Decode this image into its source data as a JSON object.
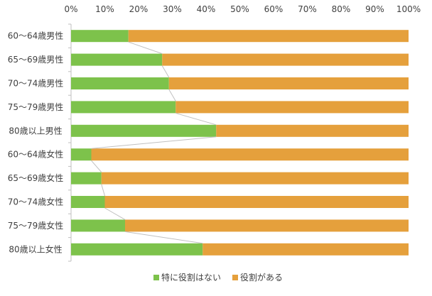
{
  "chart_data": {
    "type": "bar",
    "orientation": "horizontal",
    "stacked": "100%",
    "categories": [
      "60～64歳男性",
      "65～69歳男性",
      "70～74歳男性",
      "75～79歳男性",
      "80歳以上男性",
      "60～64歳女性",
      "65～69歳女性",
      "70～74歳女性",
      "75～79歳女性",
      "80歳以上女性"
    ],
    "series": [
      {
        "name": "特に役割はない",
        "color": "#7dc24b",
        "values": [
          17,
          27,
          29,
          31,
          43,
          6,
          9,
          10,
          16,
          39
        ]
      },
      {
        "name": "役割がある",
        "color": "#e5a03c",
        "values": [
          83,
          73,
          71,
          69,
          57,
          94,
          91,
          90,
          84,
          61
        ]
      }
    ],
    "x_ticks": [
      "0%",
      "10%",
      "20%",
      "30%",
      "40%",
      "50%",
      "60%",
      "70%",
      "80%",
      "90%",
      "100%"
    ],
    "xlim": [
      0,
      100
    ],
    "series_lines": true,
    "series_line_color": "#c0c0c0",
    "grid": false,
    "legend_position": "bottom"
  }
}
